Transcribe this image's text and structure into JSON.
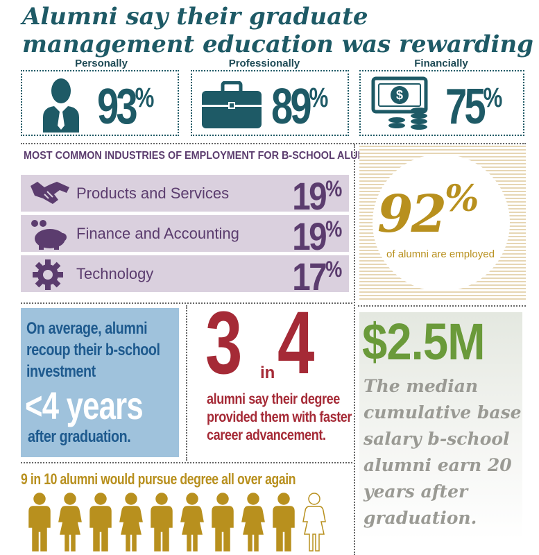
{
  "title": "Alumni say their graduate management education was rewarding",
  "rewarding": [
    {
      "label": "Personally",
      "value": "93",
      "symbol": "%",
      "icon": "businessman-icon"
    },
    {
      "label": "Professionally",
      "value": "89",
      "symbol": "%",
      "icon": "briefcase-icon"
    },
    {
      "label": "Financially",
      "value": "75",
      "symbol": "%",
      "icon": "money-coins-icon"
    }
  ],
  "industries": {
    "heading": "MOST COMMON INDUSTRIES OF EMPLOYMENT FOR B-SCHOOL ALUMNI",
    "items": [
      {
        "label": "Products and Services",
        "value": "19",
        "symbol": "%",
        "icon": "handshake-icon"
      },
      {
        "label": "Finance and Accounting",
        "value": "19",
        "symbol": "%",
        "icon": "piggy-bank-icon"
      },
      {
        "label": "Technology",
        "value": "17",
        "symbol": "%",
        "icon": "gear-icon"
      }
    ]
  },
  "employed": {
    "value": "92",
    "symbol": "%",
    "text": "of alumni are employed"
  },
  "recoup": {
    "line1": "On average, alumni recoup their b-school investment",
    "big": "<4 years",
    "line2": "after graduation."
  },
  "advancement": {
    "num1": "3",
    "in_word": "in",
    "num2": "4",
    "text": "alumni say their degree provided them with faster career advancement."
  },
  "salary": {
    "big": "$2.5M",
    "text": "The median cumulative base salary b-school alumni earn 20 years after graduation."
  },
  "pursue": {
    "text": "9 in 10 alumni would pursue degree all over again",
    "filled": 9,
    "total": 10
  },
  "colors": {
    "teal": "#1e5a66",
    "purple": "#5b3c6e",
    "gold": "#b8901e",
    "red": "#a52a36",
    "blue": "#1e5a8e",
    "green": "#6a9a3a"
  }
}
